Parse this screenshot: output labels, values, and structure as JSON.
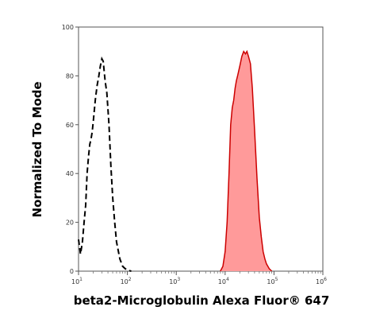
{
  "chart_data": {
    "type": "area",
    "title": "",
    "xlabel": "beta2-Microglobulin Alexa Fluor® 647",
    "ylabel": "Normalized To Mode",
    "x_scale": "log",
    "xlim": [
      10,
      1000000
    ],
    "ylim": [
      0,
      100
    ],
    "x_ticks": [
      {
        "base": "10",
        "exp": "1"
      },
      {
        "base": "10",
        "exp": "2"
      },
      {
        "base": "10",
        "exp": "3"
      },
      {
        "base": "10",
        "exp": "4"
      },
      {
        "base": "10",
        "exp": "5"
      },
      {
        "base": "10",
        "exp": "6"
      }
    ],
    "y_ticks": [
      "0",
      "20",
      "40",
      "60",
      "80",
      "100"
    ],
    "grid": false,
    "legend": "none",
    "series": [
      {
        "style": "dashed",
        "color": "#000000",
        "fill": "none",
        "x": [
          10,
          11,
          12,
          13,
          14,
          15,
          16,
          17,
          18,
          19,
          20,
          22,
          24,
          26,
          28,
          30,
          32,
          35,
          38,
          42,
          46,
          50,
          55,
          60,
          70,
          80,
          90,
          100,
          110,
          120
        ],
        "y": [
          13,
          7,
          12,
          20,
          27,
          40,
          47,
          52,
          54,
          57,
          61,
          70,
          76,
          80,
          84,
          87,
          86,
          78,
          73,
          60,
          43,
          30,
          20,
          12,
          5,
          2,
          1,
          0.5,
          0.2,
          0
        ]
      },
      {
        "style": "solid",
        "color": "#cc0000",
        "fill": "#ff9a9a",
        "x": [
          8000,
          9000,
          10000,
          11000,
          12000,
          13000,
          14000,
          15000,
          16000,
          17000,
          18000,
          20000,
          22000,
          24000,
          26000,
          28000,
          30000,
          33000,
          36000,
          40000,
          45000,
          50000,
          55000,
          60000,
          65000,
          70000,
          80000,
          90000
        ],
        "y": [
          0,
          2,
          8,
          20,
          40,
          60,
          67,
          70,
          75,
          78,
          80,
          84,
          88,
          90,
          89,
          90,
          88,
          85,
          75,
          58,
          38,
          22,
          14,
          8,
          5,
          3,
          1,
          0
        ]
      }
    ]
  }
}
